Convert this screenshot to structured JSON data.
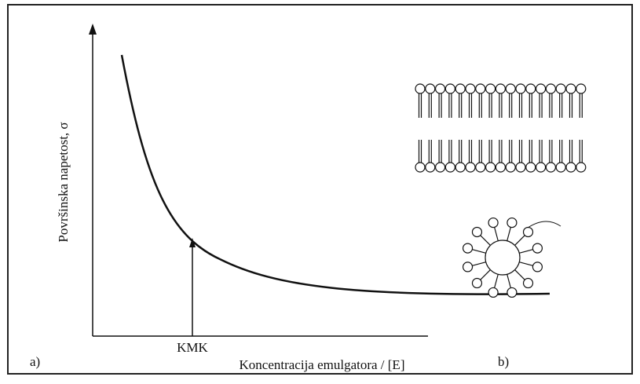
{
  "panel_a": {
    "label": "a)",
    "y_axis_label": "Površinska napetost, σ",
    "x_axis_label": "Koncentracija emulgatora / [E]",
    "marker_label": "KMK"
  },
  "panel_b": {
    "label": "b)"
  }
}
